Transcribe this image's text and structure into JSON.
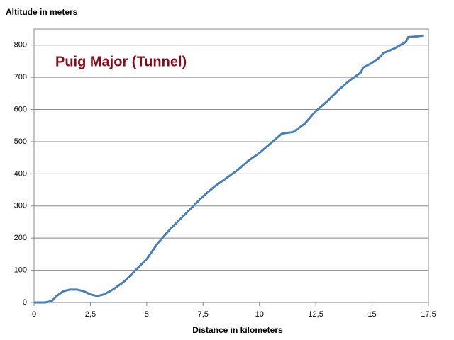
{
  "chart_data": {
    "type": "line",
    "title": "Puig Major (Tunnel)",
    "y_label": "Altitude in meters",
    "x_label": "Distance in kilometers",
    "x": [
      0,
      0.5,
      0.8,
      1.0,
      1.3,
      1.6,
      1.9,
      2.2,
      2.5,
      2.8,
      3.1,
      3.5,
      4.0,
      4.5,
      5.0,
      5.5,
      6.0,
      6.5,
      7.0,
      7.5,
      8.0,
      8.5,
      9.0,
      9.5,
      10.0,
      10.5,
      11.0,
      11.5,
      12.0,
      12.5,
      13.0,
      13.5,
      14.0,
      14.5,
      14.6,
      15.0,
      15.3,
      15.5,
      16.0,
      16.5,
      16.6,
      17.0,
      17.3
    ],
    "series": [
      {
        "name": "Altitude",
        "color": "#4a7ebb",
        "values": [
          0,
          0,
          5,
          20,
          35,
          40,
          40,
          35,
          25,
          20,
          25,
          40,
          65,
          100,
          135,
          185,
          225,
          260,
          295,
          330,
          360,
          385,
          410,
          440,
          465,
          495,
          525,
          530,
          555,
          595,
          625,
          660,
          690,
          715,
          730,
          745,
          760,
          775,
          790,
          810,
          825,
          827,
          830
        ]
      }
    ],
    "xlim": [
      0,
      17.5
    ],
    "xticks": [
      0,
      {
        "value": 2.5,
        "label": "2,5"
      },
      5,
      {
        "value": 7.5,
        "label": "7,5"
      },
      10,
      {
        "value": 12.5,
        "label": "12,5"
      },
      15,
      {
        "value": 17.5,
        "label": "17,5"
      }
    ],
    "ylim": [
      0,
      850
    ],
    "yticks": [
      0,
      100,
      200,
      300,
      400,
      500,
      600,
      700,
      800
    ],
    "grid": true
  }
}
